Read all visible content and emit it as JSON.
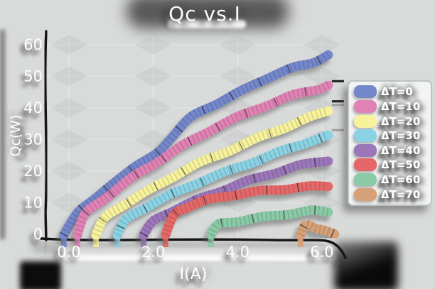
{
  "title": "Qc vs.I",
  "axes": {
    "xlabel": "I(A)",
    "ylabel": "Qc(W)",
    "x_tick_labels": [
      "0.0",
      "2.0",
      "4.0",
      "6.0"
    ],
    "y_tick_labels": [
      "0",
      "10",
      "20",
      "30",
      "40",
      "50",
      "60"
    ]
  },
  "colors": {
    "background": "#d9dbda",
    "text": "#ffffff",
    "axis": "#181818",
    "legend_background": "#f2f3f3",
    "tan_end_cap": "#8a8a15"
  },
  "chart_data": {
    "type": "line",
    "title": "Qc vs.I",
    "xlabel": "I(A)",
    "ylabel": "Qc(W)",
    "xlim": [
      -0.3,
      6.6
    ],
    "ylim": [
      0,
      60
    ],
    "x_ticks": [
      0,
      2,
      4,
      6
    ],
    "y_ticks": [
      0,
      10,
      20,
      30,
      40,
      50,
      60
    ],
    "grid": true,
    "legend_position": "right",
    "style": "hand-drawn charcoal bands",
    "series": [
      {
        "name": "ΔT=0",
        "color": "#7487cb",
        "nub_len": 34,
        "points": [
          [
            -0.12,
            0
          ],
          [
            0.2,
            6.5
          ],
          [
            0.6,
            11.5
          ],
          [
            1.1,
            16.5
          ],
          [
            1.6,
            22
          ],
          [
            2.1,
            25.5
          ],
          [
            2.45,
            31
          ],
          [
            2.9,
            37
          ],
          [
            3.5,
            41.5
          ],
          [
            4.1,
            45.5
          ],
          [
            4.7,
            49.5
          ],
          [
            5.3,
            52.5
          ],
          [
            5.8,
            54.5
          ],
          [
            6.15,
            56.5
          ]
        ]
      },
      {
        "name": "ΔT=10",
        "color": "#e083b4",
        "nub_len": 24,
        "end_marks": [
          "#101010"
        ],
        "points": [
          [
            0.2,
            0
          ],
          [
            0.4,
            6.5
          ],
          [
            0.9,
            12
          ],
          [
            1.5,
            18
          ],
          [
            2.1,
            23
          ],
          [
            2.7,
            28
          ],
          [
            3.3,
            32.5
          ],
          [
            4.0,
            37
          ],
          [
            4.7,
            41
          ],
          [
            5.3,
            44
          ],
          [
            5.9,
            46
          ],
          [
            6.15,
            46.8
          ]
        ]
      },
      {
        "name": "ΔT=20",
        "color": "#f7f29b",
        "nub_len": 24,
        "end_marks": [
          "#9a9a9a",
          "#101010"
        ],
        "points": [
          [
            0.64,
            0
          ],
          [
            0.85,
            5
          ],
          [
            1.3,
            9.5
          ],
          [
            1.9,
            14
          ],
          [
            2.5,
            18.5
          ],
          [
            3.1,
            22.5
          ],
          [
            3.8,
            26.5
          ],
          [
            4.5,
            30.5
          ],
          [
            5.1,
            33.8
          ],
          [
            5.7,
            37
          ],
          [
            6.15,
            39.3
          ]
        ]
      },
      {
        "name": "ΔT=30",
        "color": "#8bd2e4",
        "nub_len": 22,
        "end_marks": [
          "#9a9a9a"
        ],
        "points": [
          [
            1.15,
            0
          ],
          [
            1.35,
            4.5
          ],
          [
            1.8,
            8.5
          ],
          [
            2.4,
            12.5
          ],
          [
            3.0,
            16
          ],
          [
            3.7,
            19.5
          ],
          [
            4.4,
            23
          ],
          [
            5.0,
            26
          ],
          [
            5.6,
            29
          ],
          [
            6.15,
            31.3
          ]
        ]
      },
      {
        "name": "ΔT=40",
        "color": "#9b77ba",
        "nub_len": 22,
        "points": [
          [
            1.77,
            0
          ],
          [
            2.0,
            4
          ],
          [
            2.45,
            7.5
          ],
          [
            3.05,
            11
          ],
          [
            3.65,
            14
          ],
          [
            4.25,
            16.8
          ],
          [
            4.9,
            19.5
          ],
          [
            5.5,
            21.8
          ],
          [
            6.15,
            23.5
          ]
        ]
      },
      {
        "name": "ΔT=50",
        "color": "#e56767",
        "nub_len": 24,
        "points": [
          [
            2.29,
            0
          ],
          [
            2.5,
            6
          ],
          [
            2.85,
            9
          ],
          [
            3.3,
            11
          ],
          [
            3.9,
            12.5
          ],
          [
            4.5,
            13.5
          ],
          [
            5.1,
            14.3
          ],
          [
            5.7,
            15
          ],
          [
            6.15,
            15.5
          ]
        ]
      },
      {
        "name": "ΔT=60",
        "color": "#8bcaa6",
        "nub_len": 28,
        "points": [
          [
            3.37,
            0
          ],
          [
            3.55,
            3
          ],
          [
            4.0,
            4.3
          ],
          [
            4.6,
            5.5
          ],
          [
            5.2,
            6.5
          ],
          [
            5.75,
            7.3
          ],
          [
            6.15,
            7.2
          ]
        ]
      },
      {
        "name": "ΔT=70",
        "color": "#d6a078",
        "nub_len": 28,
        "nub_color": "#8a8a15",
        "points": [
          [
            5.49,
            0
          ],
          [
            5.62,
            2.8
          ],
          [
            5.85,
            2.2
          ],
          [
            6.05,
            1.2
          ],
          [
            6.3,
            0.3
          ]
        ]
      }
    ]
  }
}
